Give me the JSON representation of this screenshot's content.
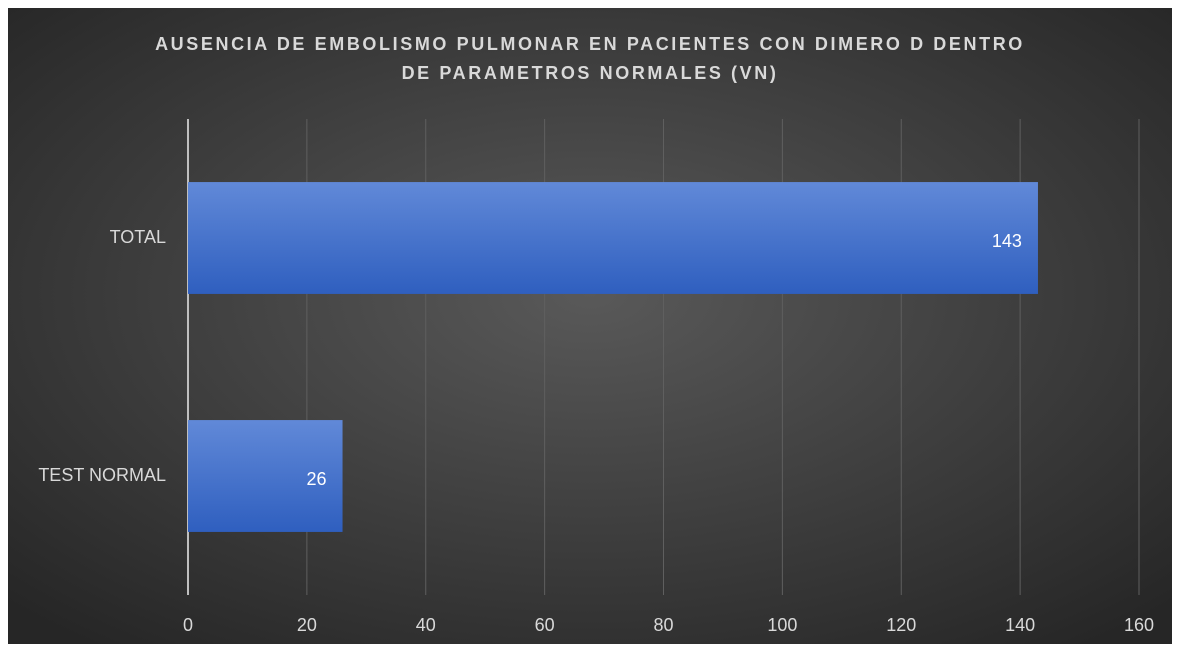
{
  "chart_data": {
    "type": "bar",
    "orientation": "horizontal",
    "title": "AUSENCIA DE EMBOLISMO PULMONAR EN PACIENTES CON DIMERO D DENTRO DE PARAMETROS NORMALES (VN)",
    "categories": [
      "TEST NORMAL",
      "TOTAL"
    ],
    "values": [
      26,
      143
    ],
    "color": "#4472c4",
    "xlim": [
      0,
      160
    ],
    "xticks": [
      0,
      20,
      40,
      60,
      80,
      100,
      120,
      140,
      160
    ],
    "grid": true
  }
}
